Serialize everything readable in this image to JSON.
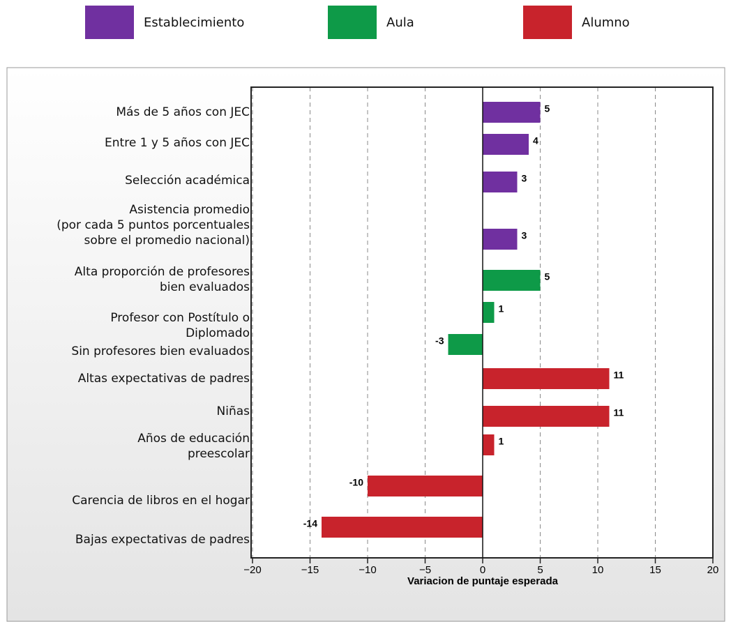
{
  "chart_data": {
    "type": "hbar",
    "xlabel": "Variacion de puntaje esperada",
    "categories": [
      "Más de 5 años con JEC",
      "Entre 1 y 5 años con JEC",
      "Selección académica",
      "Asistencia promedio\n(por cada 5 puntos porcentuales\nsobre el promedio nacional)",
      "Alta proporción de profesores\nbien evaluados",
      "Profesor con Postítulo o\nDiplomado",
      "Sin profesores bien evaluados",
      "Altas expectativas de padres",
      "Niñas",
      "Años de educación\npreescolar",
      "Carencia de libros en el hogar",
      "Bajas expectativas de padres"
    ],
    "series": [
      {
        "name": "Establecimiento",
        "color": "#7030a0",
        "values": [
          5,
          4,
          3,
          3,
          null,
          null,
          null,
          null,
          null,
          null,
          null,
          null
        ]
      },
      {
        "name": "Aula",
        "color": "#0e9a48",
        "values": [
          null,
          null,
          null,
          null,
          5,
          1,
          -3,
          null,
          null,
          null,
          null,
          null
        ]
      },
      {
        "name": "Alumno",
        "color": "#c8232c",
        "values": [
          null,
          null,
          null,
          null,
          null,
          null,
          null,
          11,
          11,
          1,
          -10,
          -14
        ]
      }
    ],
    "xlim": [
      -20,
      20
    ],
    "xticks": [
      {
        "value": -20,
        "label": "−20"
      },
      {
        "value": -15,
        "label": "−15"
      },
      {
        "value": -10,
        "label": "−10"
      },
      {
        "value": -5,
        "label": "−5"
      },
      0,
      5,
      10,
      15,
      20
    ],
    "grid": true
  }
}
